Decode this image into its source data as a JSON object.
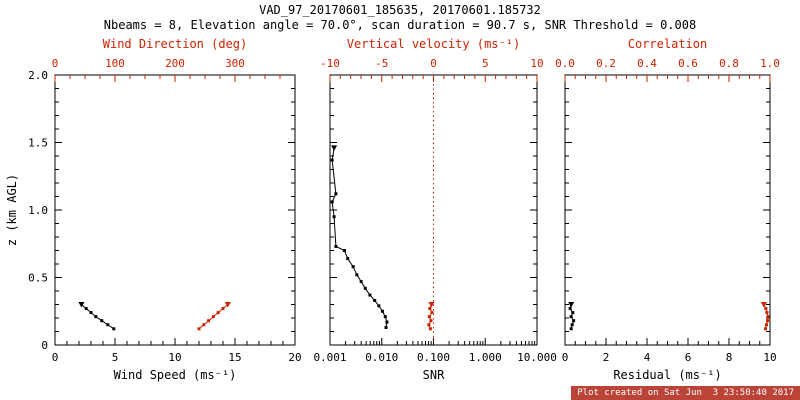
{
  "title": "VAD_97_20170601_185635, 20170601.185732",
  "subtitle": "Nbeams = 8, Elevation angle = 70.0°, scan duration = 90.7 s, SNR Threshold = 0.008",
  "footer": "Plot created on Sat Jun  3 23:50:40 2017",
  "colors": {
    "black": "#000000",
    "red": "#cc2200",
    "footer_bg": "#bb4438",
    "footer_fg": "#ffffff"
  },
  "y_axis": {
    "label": "z (km AGL)",
    "range": [
      0,
      2.0
    ],
    "tick_values": [
      0,
      0.5,
      1.0,
      1.5,
      2.0
    ],
    "tick_labels": [
      "0",
      "0.5",
      "1.0",
      "1.5",
      "2.0"
    ],
    "minor_step": 0.1
  },
  "chart_data": [
    {
      "type": "line",
      "name": "wind",
      "x_bottom": {
        "label": "Wind Speed (ms⁻¹)",
        "scale": "linear",
        "range": [
          0,
          20
        ],
        "tick_values": [
          0,
          5,
          10,
          15,
          20
        ],
        "tick_labels": [
          "0",
          "5",
          "10",
          "15",
          "20"
        ],
        "minor_step": 1,
        "color": "black"
      },
      "x_top": {
        "label": "Wind Direction (deg)",
        "scale": "linear",
        "range": [
          0,
          400
        ],
        "tick_values": [
          0,
          100,
          200,
          300
        ],
        "tick_labels": [
          "0",
          "100",
          "200",
          "300"
        ],
        "minor_step": 25,
        "color": "red"
      },
      "series": [
        {
          "name": "wind-speed",
          "axis": "bottom",
          "color": "black",
          "points": [
            [
              2.2,
              0.3
            ],
            [
              2.6,
              0.27
            ],
            [
              3.0,
              0.24
            ],
            [
              3.4,
              0.21
            ],
            [
              3.9,
              0.18
            ],
            [
              4.4,
              0.15
            ],
            [
              4.9,
              0.12
            ]
          ]
        },
        {
          "name": "wind-direction",
          "axis": "top",
          "color": "red",
          "points": [
            [
              288,
              0.3
            ],
            [
              280,
              0.27
            ],
            [
              272,
              0.24
            ],
            [
              264,
              0.21
            ],
            [
              256,
              0.18
            ],
            [
              248,
              0.15
            ],
            [
              240,
              0.12
            ]
          ]
        }
      ]
    },
    {
      "type": "line",
      "name": "snr",
      "x_bottom": {
        "label": "SNR",
        "scale": "log",
        "range": [
          0.001,
          10
        ],
        "tick_values": [
          0.001,
          0.01,
          0.1,
          1,
          10
        ],
        "tick_labels": [
          "0.001",
          "0.010",
          "0.100",
          "1.000",
          "10.000"
        ],
        "color": "black"
      },
      "x_top": {
        "label": "Vertical velocity (ms⁻¹)",
        "scale": "linear",
        "range": [
          -10,
          10
        ],
        "tick_values": [
          -10,
          -5,
          0,
          5,
          10
        ],
        "tick_labels": [
          "-10",
          "-5",
          "0",
          "5",
          "10"
        ],
        "minor_step": 1,
        "color": "red"
      },
      "ref_line": {
        "axis": "top",
        "value": 0,
        "color": "red",
        "style": "dotted"
      },
      "series": [
        {
          "name": "snr-profile",
          "axis": "bottom",
          "color": "black",
          "points": [
            [
              0.0012,
              1.46
            ],
            [
              0.0011,
              1.37
            ],
            [
              0.0013,
              1.12
            ],
            [
              0.0011,
              1.06
            ],
            [
              0.0012,
              0.95
            ],
            [
              0.0013,
              0.73
            ],
            [
              0.0019,
              0.7
            ],
            [
              0.0022,
              0.64
            ],
            [
              0.0028,
              0.58
            ],
            [
              0.0033,
              0.52
            ],
            [
              0.004,
              0.47
            ],
            [
              0.0048,
              0.42
            ],
            [
              0.0059,
              0.37
            ],
            [
              0.0073,
              0.33
            ],
            [
              0.0088,
              0.29
            ],
            [
              0.0103,
              0.25
            ],
            [
              0.0117,
              0.21
            ],
            [
              0.0126,
              0.17
            ],
            [
              0.0121,
              0.13
            ]
          ]
        },
        {
          "name": "vertical-velocity",
          "axis": "top",
          "color": "red",
          "points": [
            [
              -0.2,
              0.3
            ],
            [
              -0.35,
              0.27
            ],
            [
              -0.15,
              0.24
            ],
            [
              -0.4,
              0.21
            ],
            [
              -0.25,
              0.18
            ],
            [
              -0.45,
              0.15
            ],
            [
              -0.3,
              0.12
            ]
          ]
        }
      ]
    },
    {
      "type": "line",
      "name": "residual",
      "x_bottom": {
        "label": "Residual (ms⁻¹)",
        "scale": "linear",
        "range": [
          0,
          10
        ],
        "tick_values": [
          0,
          2,
          4,
          6,
          8,
          10
        ],
        "tick_labels": [
          "0",
          "2",
          "4",
          "6",
          "8",
          "10"
        ],
        "minor_step": 0.5,
        "color": "black"
      },
      "x_top": {
        "label": "Correlation",
        "scale": "linear",
        "range": [
          0,
          1
        ],
        "tick_values": [
          0,
          0.2,
          0.4,
          0.6,
          0.8,
          1.0
        ],
        "tick_labels": [
          "0.0",
          "0.2",
          "0.4",
          "0.6",
          "0.8",
          "1.0"
        ],
        "minor_step": 0.05,
        "color": "red"
      },
      "series": [
        {
          "name": "residual-profile",
          "axis": "bottom",
          "color": "black",
          "points": [
            [
              0.3,
              0.3
            ],
            [
              0.25,
              0.27
            ],
            [
              0.38,
              0.24
            ],
            [
              0.3,
              0.21
            ],
            [
              0.42,
              0.18
            ],
            [
              0.35,
              0.15
            ],
            [
              0.3,
              0.12
            ]
          ]
        },
        {
          "name": "correlation-profile",
          "axis": "top",
          "color": "red",
          "points": [
            [
              0.97,
              0.3
            ],
            [
              0.98,
              0.27
            ],
            [
              0.985,
              0.24
            ],
            [
              0.99,
              0.21
            ],
            [
              0.988,
              0.18
            ],
            [
              0.983,
              0.15
            ],
            [
              0.978,
              0.12
            ]
          ]
        }
      ]
    }
  ]
}
